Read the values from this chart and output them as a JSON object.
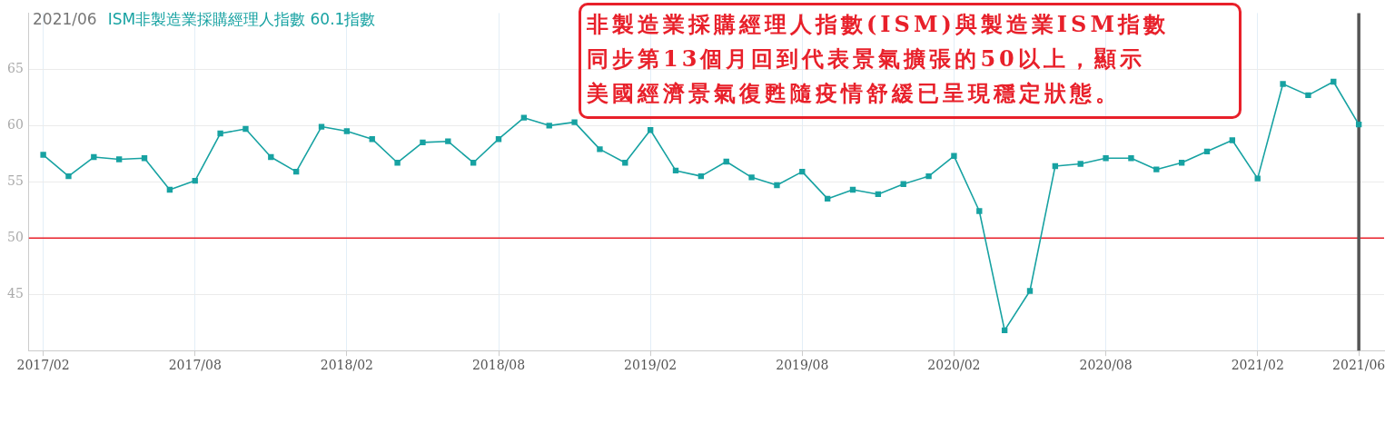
{
  "chart_data": {
    "type": "line",
    "title": "2021/06",
    "subtitle": "ISM非製造業採購經理人指數 60.1指數",
    "annotations": [
      "非製造業採購經理人指數(ISM)與製造業ISM指數",
      "同步第13個月回到代表景氣擴張的50以上，顯示",
      "美國經濟景氣復甦隨疫情舒緩已呈現穩定狀態。"
    ],
    "x": [
      "2017-02",
      "2017-03",
      "2017-04",
      "2017-05",
      "2017-06",
      "2017-07",
      "2017-08",
      "2017-09",
      "2017-10",
      "2017-11",
      "2017-12",
      "2018-01",
      "2018-02",
      "2018-03",
      "2018-04",
      "2018-05",
      "2018-06",
      "2018-07",
      "2018-08",
      "2018-09",
      "2018-10",
      "2018-11",
      "2018-12",
      "2019-01",
      "2019-02",
      "2019-03",
      "2019-04",
      "2019-05",
      "2019-06",
      "2019-07",
      "2019-08",
      "2019-09",
      "2019-10",
      "2019-11",
      "2019-12",
      "2020-01",
      "2020-02",
      "2020-03",
      "2020-04",
      "2020-05",
      "2020-06",
      "2020-07",
      "2020-08",
      "2020-09",
      "2020-10",
      "2020-11",
      "2020-12",
      "2021-01",
      "2021-02",
      "2021-03",
      "2021-04",
      "2021-05",
      "2021-06"
    ],
    "series": [
      {
        "color": "#17a2a2",
        "values": [
          57.4,
          55.5,
          57.2,
          57.0,
          57.1,
          54.3,
          55.1,
          59.3,
          59.7,
          57.2,
          55.9,
          59.9,
          59.5,
          58.8,
          56.7,
          58.5,
          58.6,
          56.7,
          58.8,
          60.7,
          60.0,
          60.3,
          57.9,
          56.7,
          59.6,
          56.0,
          55.5,
          56.8,
          55.4,
          54.7,
          55.9,
          53.5,
          54.3,
          53.9,
          54.8,
          55.5,
          57.3,
          52.4,
          41.8,
          45.3,
          56.4,
          56.6,
          57.1,
          57.1,
          56.1,
          56.7,
          57.7,
          58.7,
          55.3,
          63.7,
          62.7,
          63.9,
          60.1
        ]
      }
    ],
    "xlim": [
      "2017-01-14",
      "2021-07-01"
    ],
    "xticks": [
      {
        "value": "2017-02",
        "label": "2017/02"
      },
      {
        "value": "2017-08",
        "label": "2017/08"
      },
      {
        "value": "2018-02",
        "label": "2018/02"
      },
      {
        "value": "2018-08",
        "label": "2018/08"
      },
      {
        "value": "2019-02",
        "label": "2019/02"
      },
      {
        "value": "2019-08",
        "label": "2019/08"
      },
      {
        "value": "2020-02",
        "label": "2020/02"
      },
      {
        "value": "2020-08",
        "label": "2020/08"
      },
      {
        "value": "2021-02",
        "label": "2021/02"
      },
      {
        "value": "2021-06",
        "label": "2021/06"
      }
    ],
    "ylim": [
      40,
      70
    ],
    "yticks": [
      45,
      50,
      55,
      60,
      65
    ],
    "ref_lines": [
      {
        "axis": "y",
        "value": 50,
        "color": "#e8202a"
      },
      {
        "axis": "x",
        "value": "2021-06",
        "color": "#555555"
      }
    ],
    "grid": true,
    "legend": false,
    "marker": "square",
    "line_style": "solid"
  }
}
